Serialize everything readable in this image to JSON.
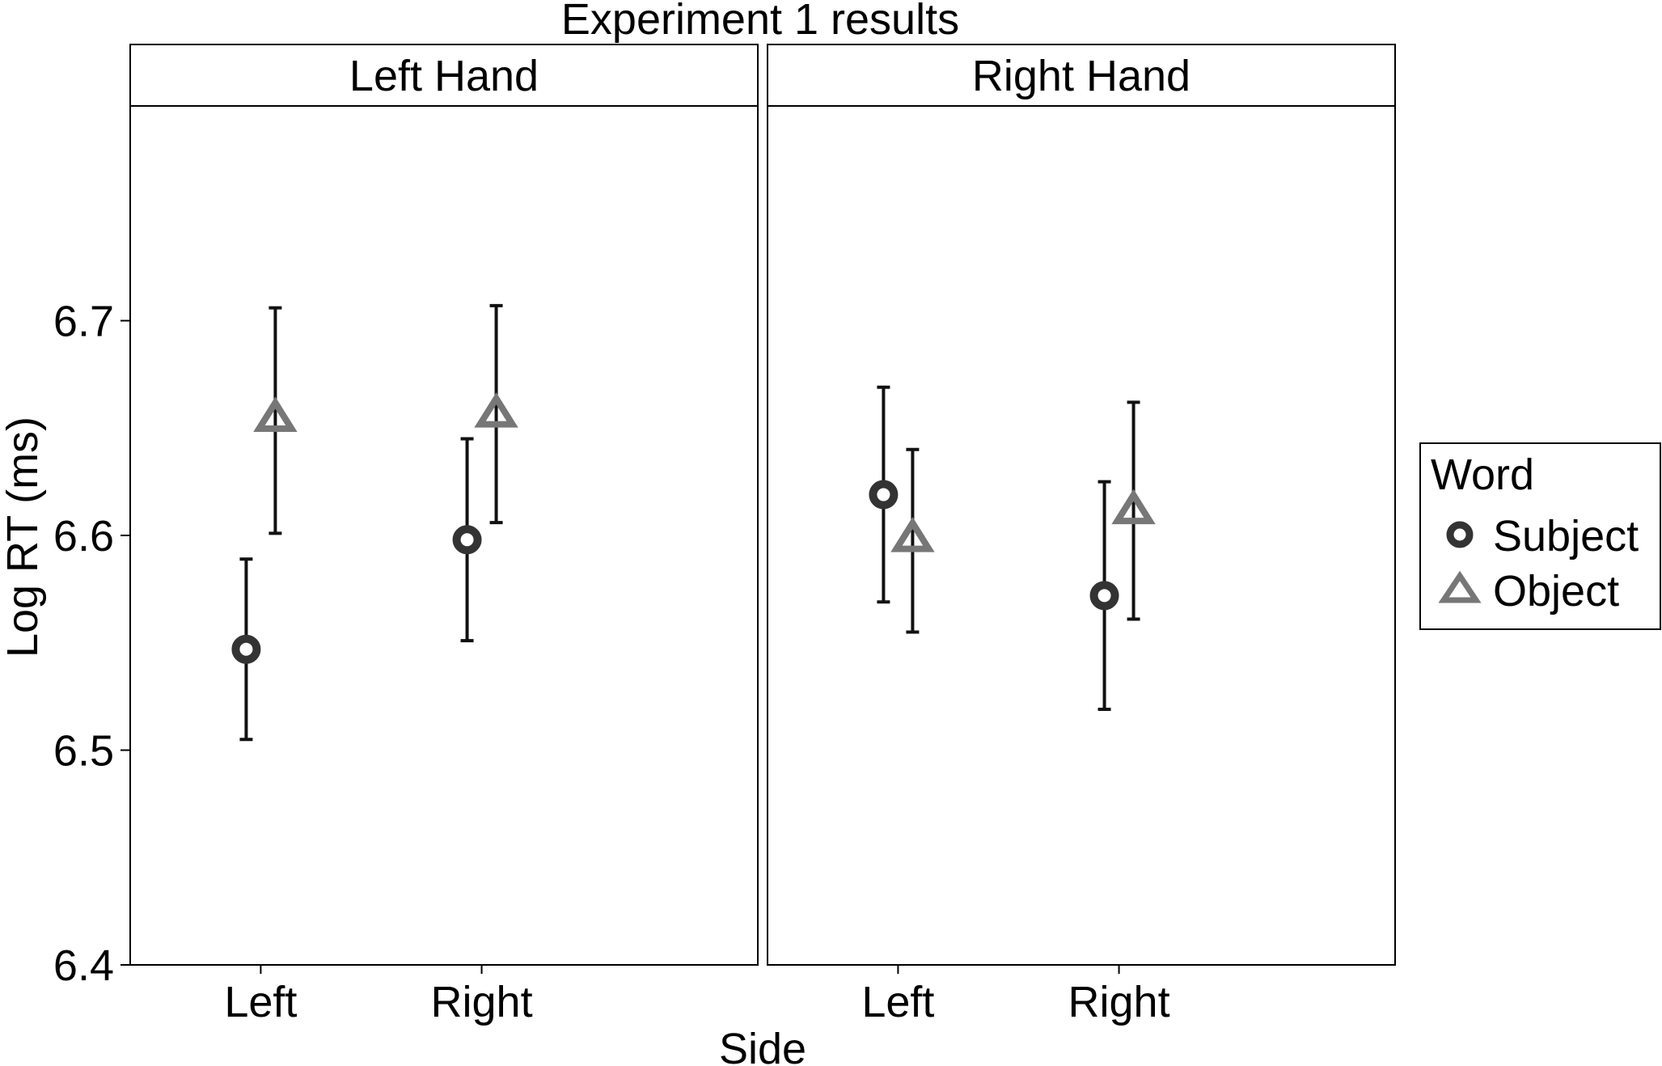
{
  "chart_data": {
    "type": "scatter",
    "title": "Experiment 1 results",
    "xlabel": "Side",
    "ylabel": "Log RT (ms)",
    "ylim": [
      6.4,
      6.8
    ],
    "yticks": [
      "6.4",
      "6.5",
      "6.6",
      "6.7"
    ],
    "grid": false,
    "legend": {
      "title": "Word",
      "position": "right",
      "entries": [
        "Subject",
        "Object"
      ]
    },
    "colors": {
      "Subject": "#333333",
      "Object": "#777777"
    },
    "markers": {
      "Subject": "circle",
      "Object": "triangle"
    },
    "categories": [
      "Left",
      "Right"
    ],
    "panels": [
      {
        "label": "Left Hand",
        "series": [
          {
            "name": "Subject",
            "values": [
              6.547,
              6.598
            ],
            "lower": [
              6.505,
              6.551
            ],
            "upper": [
              6.589,
              6.645
            ]
          },
          {
            "name": "Object",
            "values": [
              6.655,
              6.657
            ],
            "lower": [
              6.601,
              6.606
            ],
            "upper": [
              6.706,
              6.707
            ]
          }
        ]
      },
      {
        "label": "Right Hand",
        "series": [
          {
            "name": "Subject",
            "values": [
              6.619,
              6.572
            ],
            "lower": [
              6.569,
              6.519
            ],
            "upper": [
              6.669,
              6.625
            ]
          },
          {
            "name": "Object",
            "values": [
              6.599,
              6.612
            ],
            "lower": [
              6.555,
              6.561
            ],
            "upper": [
              6.64,
              6.662
            ]
          }
        ]
      }
    ]
  }
}
